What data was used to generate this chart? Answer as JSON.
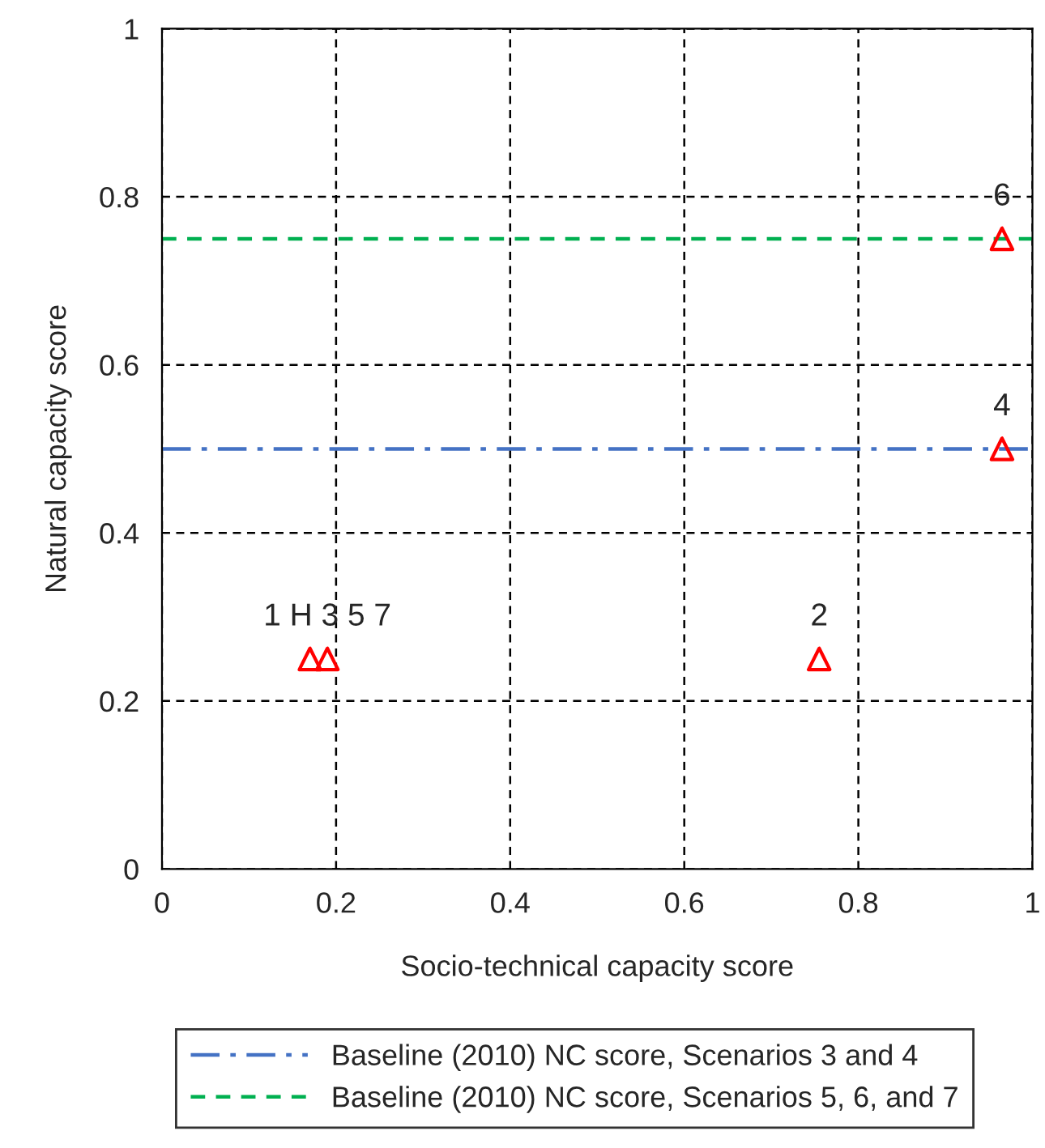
{
  "chart_data": {
    "type": "scatter",
    "xlabel": "Socio-technical capacity score",
    "ylabel": "Natural capacity score",
    "xlim": [
      0,
      1
    ],
    "ylim": [
      0,
      1
    ],
    "xticks": [
      0,
      0.2,
      0.4,
      0.6,
      0.8,
      1
    ],
    "yticks": [
      0,
      0.2,
      0.4,
      0.6,
      0.8,
      1
    ],
    "grid": true,
    "marker": "triangle",
    "legend": "bottom",
    "series": [
      {
        "color": "#ff0000",
        "x": [
          0.17,
          0.19,
          0.755,
          0.965,
          0.965
        ],
        "values": [
          0.25,
          0.25,
          0.25,
          0.5,
          0.75
        ]
      }
    ],
    "ref_lines": [
      {
        "axis": "y",
        "value": 0.5,
        "label": "Baseline (2010) NC score, Scenarios 3 and 4",
        "color": "#4472c4",
        "line_style": "dashdot"
      },
      {
        "axis": "y",
        "value": 0.75,
        "label": "Baseline (2010) NC score, Scenarios 5, 6, and 7",
        "color": "#00b050",
        "line_style": "dashed"
      }
    ],
    "annotations": [
      {
        "text": "1 H 3 5 7",
        "x": 0.19,
        "y": 0.25
      },
      {
        "text": "2",
        "x": 0.755,
        "y": 0.25
      },
      {
        "text": "4",
        "x": 0.965,
        "y": 0.5
      },
      {
        "text": "6",
        "x": 0.965,
        "y": 0.75
      }
    ]
  }
}
